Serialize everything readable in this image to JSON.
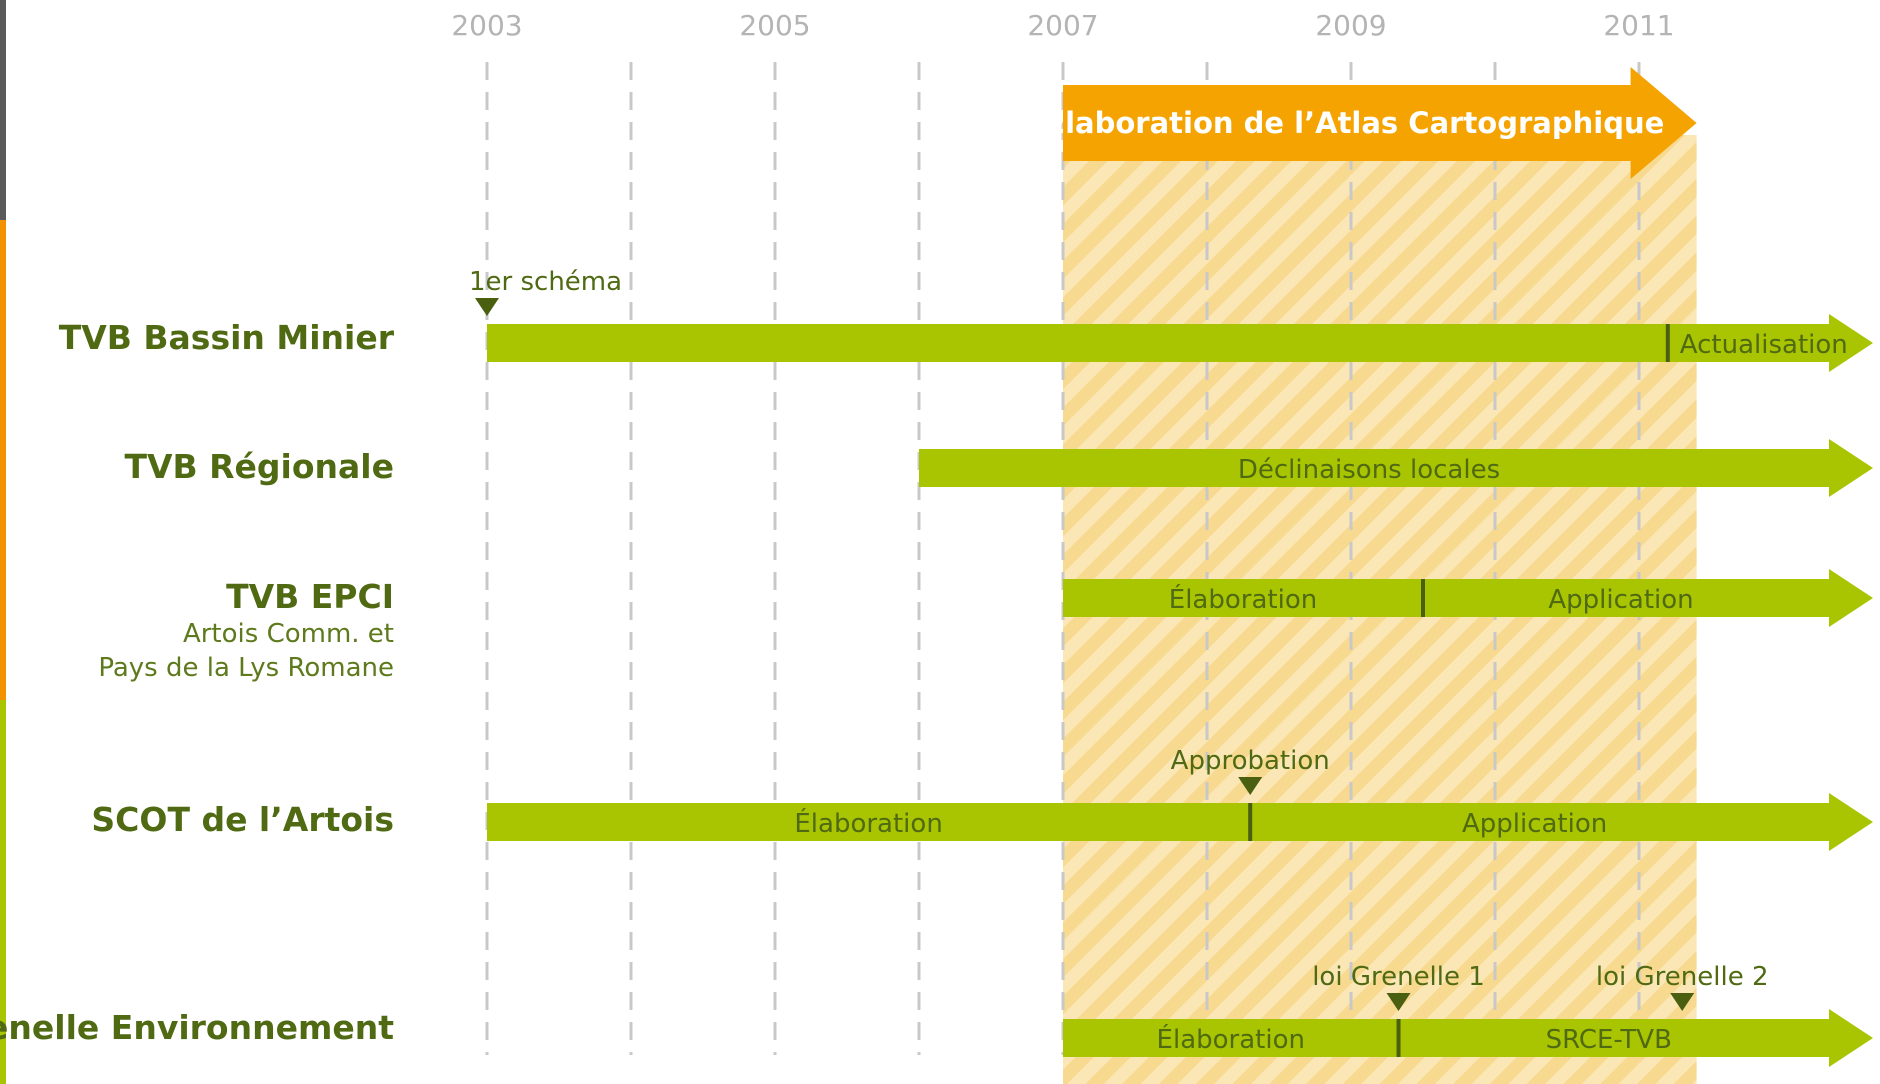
{
  "colors": {
    "green_bar": "#a9c400",
    "dark_green": "#4f6a12",
    "marker": "#4a5f10",
    "orange_arrow": "#f5a300",
    "hatch_light": "#fbe6b5",
    "hatch_dark": "#f7d98f",
    "grid": "#c8c8c8",
    "year_text": "#b4b4b4"
  },
  "years": [
    "2003",
    "2005",
    "2007",
    "2009",
    "2011"
  ],
  "atlas": {
    "label": "Élaboration de l’Atlas Cartographique",
    "start": 2007.0,
    "end": 2011.4
  },
  "rows": [
    {
      "key": "bassin",
      "title": "TVB Bassin Minier",
      "subtitle": [],
      "start": 2003.0,
      "segments": [
        {
          "label": "Actualisation",
          "from": 2011.2,
          "to": 2012.4,
          "align": "start"
        }
      ],
      "dividers": [
        2011.2
      ],
      "markers": [
        {
          "label": "1er schéma",
          "at": 2003.0,
          "label_align": "start"
        }
      ]
    },
    {
      "key": "regionale",
      "title": "TVB Régionale",
      "subtitle": [],
      "start": 2006.0,
      "segments": [
        {
          "label": "Déclinaisons locales",
          "from": 2006.0,
          "to": 2012.4,
          "align": "center"
        }
      ],
      "dividers": [],
      "markers": []
    },
    {
      "key": "epci",
      "title": "TVB EPCI",
      "subtitle": [
        "Artois Comm. et",
        "Pays de la Lys Romane"
      ],
      "start": 2007.0,
      "segments": [
        {
          "label": "Élaboration",
          "from": 2007.0,
          "to": 2009.5,
          "align": "center"
        },
        {
          "label": "Application",
          "from": 2009.5,
          "to": 2012.4,
          "align": "center"
        }
      ],
      "dividers": [
        2009.5
      ],
      "markers": []
    },
    {
      "key": "scot",
      "title": "SCOT de l’Artois",
      "subtitle": [],
      "start": 2003.0,
      "segments": [
        {
          "label": "Élaboration",
          "from": 2003.0,
          "to": 2008.3,
          "align": "center"
        },
        {
          "label": "Application",
          "from": 2008.3,
          "to": 2012.4,
          "align": "center"
        }
      ],
      "dividers": [
        2008.3
      ],
      "markers": [
        {
          "label": "Approbation",
          "at": 2008.3,
          "label_align": "middle"
        }
      ]
    },
    {
      "key": "grenelle",
      "title": "Grenelle Environnement",
      "subtitle": [],
      "start": 2007.0,
      "segments": [
        {
          "label": "Élaboration",
          "from": 2007.0,
          "to": 2009.33,
          "align": "center"
        },
        {
          "label": "SRCE-TVB",
          "from": 2009.33,
          "to": 2012.4,
          "align": "center"
        }
      ],
      "dividers": [
        2009.33
      ],
      "markers": [
        {
          "label": "loi Grenelle 1",
          "at": 2009.33,
          "label_align": "middle"
        },
        {
          "label": "loi Grenelle 2",
          "at": 2011.3,
          "label_align": "middle"
        }
      ]
    }
  ]
}
